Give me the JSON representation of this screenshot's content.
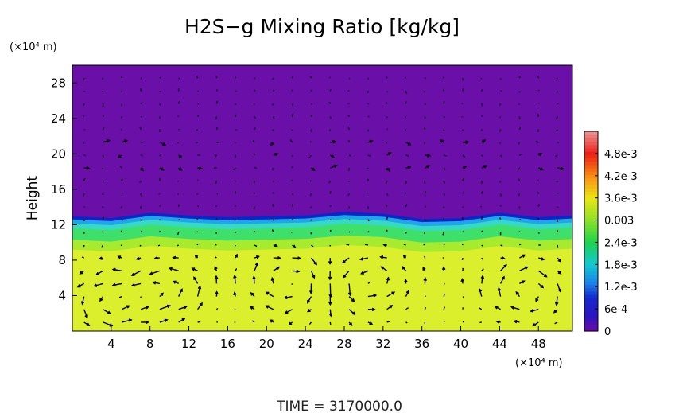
{
  "chart_data": {
    "type": "heatmap",
    "title": "H2S−g Mixing Ratio [kg/kg]",
    "ylabel": "Height",
    "y_unit_label": "(×10⁴ m)",
    "x_unit_label": "(×10⁴ m)",
    "xlim": [
      0,
      51.5
    ],
    "ylim": [
      0,
      30
    ],
    "x_ticks": [
      "4",
      "8",
      "12",
      "16",
      "20",
      "24",
      "28",
      "32",
      "36",
      "40",
      "44",
      "48"
    ],
    "x_tick_values": [
      4,
      8,
      12,
      16,
      20,
      24,
      28,
      32,
      36,
      40,
      44,
      48
    ],
    "y_ticks": [
      "4",
      "8",
      "12",
      "16",
      "20",
      "24",
      "28"
    ],
    "y_tick_values": [
      4,
      8,
      12,
      16,
      20,
      24,
      28
    ],
    "colorbar": {
      "labels": [
        "4.8e-3",
        "4.2e-3",
        "3.6e-3",
        "0.003",
        "2.4e-3",
        "1.8e-3",
        "1.2e-3",
        "6e-4",
        "0"
      ],
      "values": [
        0.0048,
        0.0042,
        0.0036,
        0.003,
        0.0024,
        0.0018,
        0.0012,
        0.0006,
        0
      ],
      "range": [
        0,
        0.0054
      ]
    },
    "field_summary": {
      "lower_layer_value": 0.0034,
      "upper_layer_value": 0,
      "transition_height_profile": [
        [
          0,
          12.5
        ],
        [
          4,
          12.3
        ],
        [
          8,
          12.9
        ],
        [
          12,
          12.6
        ],
        [
          16,
          12.4
        ],
        [
          20,
          12.5
        ],
        [
          24,
          12.6
        ],
        [
          28,
          13.0
        ],
        [
          32,
          12.8
        ],
        [
          36,
          12.2
        ],
        [
          40,
          12.3
        ],
        [
          44,
          12.9
        ],
        [
          48,
          12.4
        ],
        [
          51.5,
          12.6
        ]
      ]
    },
    "wind_vectors": "dense arrow field; circulation cells below ~10×10⁴ m near x = 8–12, 18–26, 28–34, 44–50"
  },
  "footer": {
    "time_label": "TIME  =  3170000.0"
  }
}
